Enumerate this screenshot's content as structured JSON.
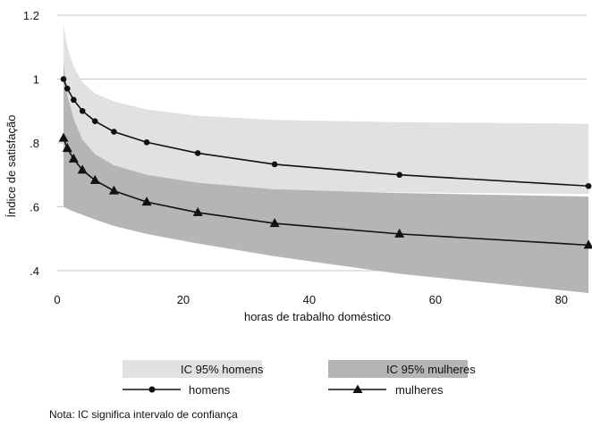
{
  "chart_data": {
    "type": "line",
    "xlabel": "horas de trabalho doméstico",
    "ylabel": "Índice de satisfação",
    "xlim": [
      0,
      84
    ],
    "ylim": [
      0.33,
      1.2
    ],
    "x_ticks": [
      0,
      20,
      40,
      60,
      80
    ],
    "y_ticks": [
      0.4,
      0.6,
      0.8,
      1.0,
      1.2
    ],
    "y_tick_labels": [
      ".4",
      ".6",
      ".8",
      "1",
      "1.2"
    ],
    "grid": "horizontal",
    "series": [
      {
        "name": "homens",
        "marker": "circle",
        "x": [
          1,
          1.6,
          2.6,
          4,
          6,
          9,
          14.2,
          22.3,
          34.5,
          54.3,
          84.3
        ],
        "y": [
          1.0,
          0.97,
          0.935,
          0.9,
          0.868,
          0.835,
          0.802,
          0.768,
          0.733,
          0.7,
          0.665
        ]
      },
      {
        "name": "mulheres",
        "marker": "triangle",
        "x": [
          1,
          1.6,
          2.6,
          4,
          6,
          9,
          14.2,
          22.3,
          34.5,
          54.3,
          84.3
        ],
        "y": [
          0.815,
          0.783,
          0.75,
          0.715,
          0.683,
          0.65,
          0.615,
          0.582,
          0.548,
          0.515,
          0.48
        ]
      }
    ],
    "bands": [
      {
        "name": "IC 95% homens",
        "color": "#e1e1e1",
        "x": [
          1,
          1.6,
          2.6,
          4,
          6,
          9,
          14.2,
          22.3,
          34.5,
          54.3,
          84.3
        ],
        "lower": [
          0.83,
          0.79,
          0.755,
          0.725,
          0.703,
          0.685,
          0.668,
          0.657,
          0.65,
          0.645,
          0.64
        ],
        "upper": [
          1.17,
          1.1,
          1.04,
          0.99,
          0.955,
          0.93,
          0.905,
          0.885,
          0.872,
          0.865,
          0.86
        ]
      },
      {
        "name": "IC 95% mulheres",
        "color": "#b5b5b5",
        "x": [
          1,
          1.6,
          2.6,
          4,
          6,
          9,
          14.2,
          22.3,
          34.5,
          54.3,
          84.3
        ],
        "lower": [
          0.6,
          0.594,
          0.585,
          0.575,
          0.56,
          0.54,
          0.515,
          0.485,
          0.445,
          0.39,
          0.33
        ],
        "upper": [
          1.05,
          0.95,
          0.875,
          0.81,
          0.765,
          0.73,
          0.7,
          0.675,
          0.655,
          0.643,
          0.632
        ]
      }
    ],
    "legend_position": "bottom"
  },
  "note": "Nota: IC significa intervalo de confiança"
}
